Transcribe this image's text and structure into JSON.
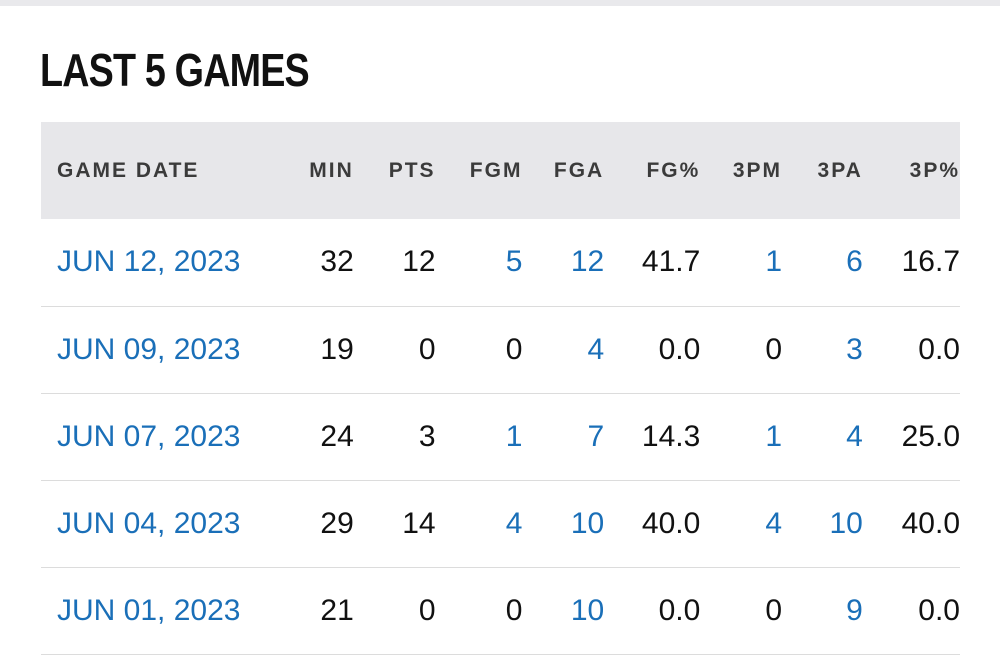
{
  "section": {
    "title": "LAST 5 GAMES"
  },
  "colors": {
    "link": "#1a6fb8",
    "header_bg": "#e7e7ea",
    "text": "#111111"
  },
  "table": {
    "headers": {
      "game_date": "GAME DATE",
      "min": "MIN",
      "pts": "PTS",
      "fgm": "FGM",
      "fga": "FGA",
      "fg_pct": "FG%",
      "three_pm": "3PM",
      "three_pa": "3PA",
      "three_pct": "3P%"
    },
    "rows": [
      {
        "game_date": "JUN 12, 2023",
        "min": "32",
        "pts": "12",
        "fgm": "5",
        "fga": "12",
        "fg_pct": "41.7",
        "three_pm": "1",
        "three_pa": "6",
        "three_pct": "16.7"
      },
      {
        "game_date": "JUN 09, 2023",
        "min": "19",
        "pts": "0",
        "fgm": "0",
        "fga": "4",
        "fg_pct": "0.0",
        "three_pm": "0",
        "three_pa": "3",
        "three_pct": "0.0"
      },
      {
        "game_date": "JUN 07, 2023",
        "min": "24",
        "pts": "3",
        "fgm": "1",
        "fga": "7",
        "fg_pct": "14.3",
        "three_pm": "1",
        "three_pa": "4",
        "three_pct": "25.0"
      },
      {
        "game_date": "JUN 04, 2023",
        "min": "29",
        "pts": "14",
        "fgm": "4",
        "fga": "10",
        "fg_pct": "40.0",
        "three_pm": "4",
        "three_pa": "10",
        "three_pct": "40.0"
      },
      {
        "game_date": "JUN 01, 2023",
        "min": "21",
        "pts": "0",
        "fgm": "0",
        "fga": "10",
        "fg_pct": "0.0",
        "three_pm": "0",
        "three_pa": "9",
        "three_pct": "0.0"
      }
    ]
  }
}
